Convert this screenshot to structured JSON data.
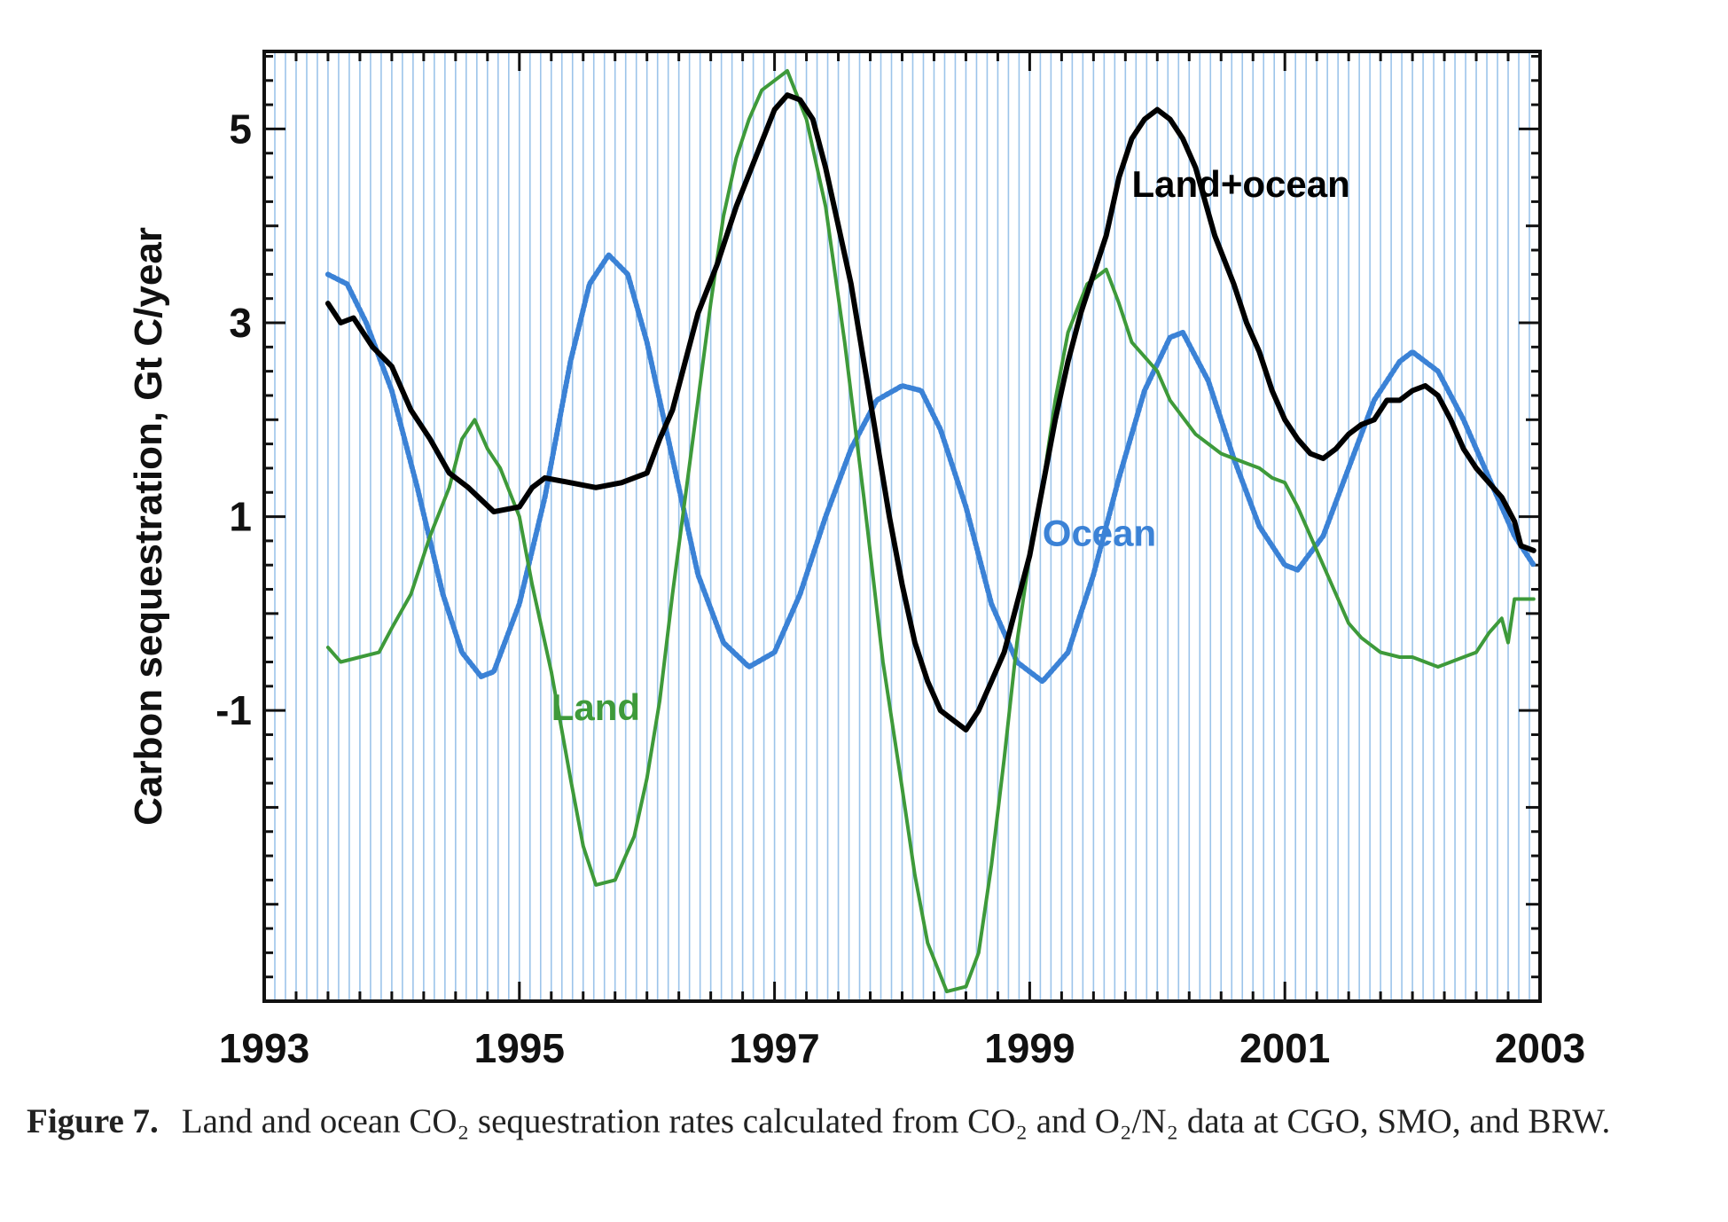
{
  "chart_data": {
    "type": "line",
    "title": "",
    "xlabel": "",
    "ylabel": "Carbon sequestration, Gt C/year",
    "xlim": [
      1993,
      2003
    ],
    "ylim": [
      -4,
      5.8
    ],
    "x_ticks": [
      "1993",
      "1995",
      "1997",
      "1999",
      "2001",
      "2003"
    ],
    "y_ticks": [
      "-1",
      "1",
      "3",
      "5"
    ],
    "grid": "vertical monthly gridlines",
    "series": [
      {
        "name": "Land+ocean",
        "color": "#000000",
        "points": [
          [
            1993.5,
            3.2
          ],
          [
            1993.6,
            3.0
          ],
          [
            1993.7,
            3.05
          ],
          [
            1993.85,
            2.75
          ],
          [
            1994.0,
            2.55
          ],
          [
            1994.15,
            2.1
          ],
          [
            1994.3,
            1.8
          ],
          [
            1994.45,
            1.45
          ],
          [
            1994.6,
            1.3
          ],
          [
            1994.8,
            1.05
          ],
          [
            1995.0,
            1.1
          ],
          [
            1995.1,
            1.3
          ],
          [
            1995.2,
            1.4
          ],
          [
            1995.4,
            1.35
          ],
          [
            1995.6,
            1.3
          ],
          [
            1995.8,
            1.35
          ],
          [
            1996.0,
            1.45
          ],
          [
            1996.1,
            1.8
          ],
          [
            1996.2,
            2.1
          ],
          [
            1996.3,
            2.6
          ],
          [
            1996.4,
            3.1
          ],
          [
            1996.55,
            3.6
          ],
          [
            1996.7,
            4.2
          ],
          [
            1996.85,
            4.7
          ],
          [
            1997.0,
            5.2
          ],
          [
            1997.1,
            5.35
          ],
          [
            1997.2,
            5.3
          ],
          [
            1997.3,
            5.1
          ],
          [
            1997.4,
            4.6
          ],
          [
            1997.5,
            4.0
          ],
          [
            1997.6,
            3.4
          ],
          [
            1997.7,
            2.6
          ],
          [
            1997.8,
            1.8
          ],
          [
            1997.9,
            1.0
          ],
          [
            1998.0,
            0.3
          ],
          [
            1998.1,
            -0.3
          ],
          [
            1998.2,
            -0.7
          ],
          [
            1998.3,
            -1.0
          ],
          [
            1998.4,
            -1.1
          ],
          [
            1998.5,
            -1.2
          ],
          [
            1998.6,
            -1.0
          ],
          [
            1998.7,
            -0.7
          ],
          [
            1998.8,
            -0.4
          ],
          [
            1998.9,
            0.1
          ],
          [
            1999.0,
            0.6
          ],
          [
            1999.1,
            1.3
          ],
          [
            1999.2,
            2.0
          ],
          [
            1999.3,
            2.6
          ],
          [
            1999.4,
            3.1
          ],
          [
            1999.5,
            3.5
          ],
          [
            1999.6,
            3.9
          ],
          [
            1999.7,
            4.5
          ],
          [
            1999.8,
            4.9
          ],
          [
            1999.9,
            5.1
          ],
          [
            2000.0,
            5.2
          ],
          [
            2000.1,
            5.1
          ],
          [
            2000.2,
            4.9
          ],
          [
            2000.3,
            4.6
          ],
          [
            2000.45,
            3.9
          ],
          [
            2000.6,
            3.4
          ],
          [
            2000.7,
            3.0
          ],
          [
            2000.8,
            2.7
          ],
          [
            2000.9,
            2.3
          ],
          [
            2001.0,
            2.0
          ],
          [
            2001.1,
            1.8
          ],
          [
            2001.2,
            1.65
          ],
          [
            2001.3,
            1.6
          ],
          [
            2001.4,
            1.7
          ],
          [
            2001.5,
            1.85
          ],
          [
            2001.6,
            1.95
          ],
          [
            2001.7,
            2.0
          ],
          [
            2001.8,
            2.2
          ],
          [
            2001.9,
            2.2
          ],
          [
            2002.0,
            2.3
          ],
          [
            2002.1,
            2.35
          ],
          [
            2002.2,
            2.25
          ],
          [
            2002.3,
            2.0
          ],
          [
            2002.4,
            1.7
          ],
          [
            2002.5,
            1.5
          ],
          [
            2002.6,
            1.35
          ],
          [
            2002.7,
            1.2
          ],
          [
            2002.8,
            0.95
          ],
          [
            2002.85,
            0.7
          ],
          [
            2002.95,
            0.65
          ]
        ]
      },
      {
        "name": "Ocean",
        "color": "#3b82d6",
        "points": [
          [
            1993.5,
            3.5
          ],
          [
            1993.65,
            3.4
          ],
          [
            1993.8,
            3.0
          ],
          [
            1994.0,
            2.3
          ],
          [
            1994.2,
            1.3
          ],
          [
            1994.4,
            0.2
          ],
          [
            1994.55,
            -0.4
          ],
          [
            1994.7,
            -0.65
          ],
          [
            1994.8,
            -0.6
          ],
          [
            1995.0,
            0.1
          ],
          [
            1995.2,
            1.2
          ],
          [
            1995.4,
            2.6
          ],
          [
            1995.55,
            3.4
          ],
          [
            1995.7,
            3.7
          ],
          [
            1995.85,
            3.5
          ],
          [
            1996.0,
            2.8
          ],
          [
            1996.2,
            1.6
          ],
          [
            1996.4,
            0.4
          ],
          [
            1996.6,
            -0.3
          ],
          [
            1996.8,
            -0.55
          ],
          [
            1997.0,
            -0.4
          ],
          [
            1997.2,
            0.2
          ],
          [
            1997.4,
            1.0
          ],
          [
            1997.6,
            1.7
          ],
          [
            1997.8,
            2.2
          ],
          [
            1998.0,
            2.35
          ],
          [
            1998.15,
            2.3
          ],
          [
            1998.3,
            1.9
          ],
          [
            1998.5,
            1.1
          ],
          [
            1998.7,
            0.1
          ],
          [
            1998.9,
            -0.5
          ],
          [
            1999.1,
            -0.7
          ],
          [
            1999.3,
            -0.4
          ],
          [
            1999.5,
            0.4
          ],
          [
            1999.7,
            1.4
          ],
          [
            1999.9,
            2.3
          ],
          [
            2000.1,
            2.85
          ],
          [
            2000.2,
            2.9
          ],
          [
            2000.4,
            2.4
          ],
          [
            2000.6,
            1.6
          ],
          [
            2000.8,
            0.9
          ],
          [
            2001.0,
            0.5
          ],
          [
            2001.1,
            0.45
          ],
          [
            2001.3,
            0.8
          ],
          [
            2001.5,
            1.5
          ],
          [
            2001.7,
            2.2
          ],
          [
            2001.9,
            2.6
          ],
          [
            2002.0,
            2.7
          ],
          [
            2002.2,
            2.5
          ],
          [
            2002.4,
            2.0
          ],
          [
            2002.6,
            1.4
          ],
          [
            2002.8,
            0.8
          ],
          [
            2002.95,
            0.5
          ]
        ]
      },
      {
        "name": "Land",
        "color": "#3e9a3a",
        "points": [
          [
            1993.5,
            -0.35
          ],
          [
            1993.6,
            -0.5
          ],
          [
            1993.75,
            -0.45
          ],
          [
            1993.9,
            -0.4
          ],
          [
            1994.0,
            -0.15
          ],
          [
            1994.15,
            0.2
          ],
          [
            1994.3,
            0.8
          ],
          [
            1994.45,
            1.3
          ],
          [
            1994.55,
            1.8
          ],
          [
            1994.65,
            2.0
          ],
          [
            1994.75,
            1.7
          ],
          [
            1994.85,
            1.5
          ],
          [
            1995.0,
            1.0
          ],
          [
            1995.1,
            0.3
          ],
          [
            1995.25,
            -0.6
          ],
          [
            1995.4,
            -1.7
          ],
          [
            1995.5,
            -2.4
          ],
          [
            1995.6,
            -2.8
          ],
          [
            1995.75,
            -2.75
          ],
          [
            1995.9,
            -2.3
          ],
          [
            1996.0,
            -1.7
          ],
          [
            1996.1,
            -0.9
          ],
          [
            1996.2,
            0.2
          ],
          [
            1996.3,
            1.2
          ],
          [
            1996.4,
            2.2
          ],
          [
            1996.5,
            3.2
          ],
          [
            1996.6,
            4.1
          ],
          [
            1996.7,
            4.7
          ],
          [
            1996.8,
            5.1
          ],
          [
            1996.9,
            5.4
          ],
          [
            1997.0,
            5.5
          ],
          [
            1997.1,
            5.6
          ],
          [
            1997.25,
            5.1
          ],
          [
            1997.4,
            4.2
          ],
          [
            1997.55,
            2.8
          ],
          [
            1997.7,
            1.2
          ],
          [
            1997.85,
            -0.5
          ],
          [
            1998.0,
            -1.8
          ],
          [
            1998.1,
            -2.7
          ],
          [
            1998.2,
            -3.4
          ],
          [
            1998.35,
            -3.9
          ],
          [
            1998.5,
            -3.85
          ],
          [
            1998.6,
            -3.5
          ],
          [
            1998.7,
            -2.6
          ],
          [
            1998.8,
            -1.5
          ],
          [
            1998.9,
            -0.3
          ],
          [
            1999.0,
            0.6
          ],
          [
            1999.1,
            1.3
          ],
          [
            1999.2,
            2.2
          ],
          [
            1999.3,
            2.9
          ],
          [
            1999.45,
            3.4
          ],
          [
            1999.6,
            3.55
          ],
          [
            1999.7,
            3.2
          ],
          [
            1999.8,
            2.8
          ],
          [
            2000.0,
            2.5
          ],
          [
            2000.1,
            2.2
          ],
          [
            2000.3,
            1.85
          ],
          [
            2000.5,
            1.65
          ],
          [
            2000.7,
            1.55
          ],
          [
            2000.8,
            1.5
          ],
          [
            2000.9,
            1.4
          ],
          [
            2001.0,
            1.35
          ],
          [
            2001.1,
            1.1
          ],
          [
            2001.2,
            0.8
          ],
          [
            2001.3,
            0.5
          ],
          [
            2001.4,
            0.2
          ],
          [
            2001.5,
            -0.1
          ],
          [
            2001.6,
            -0.25
          ],
          [
            2001.75,
            -0.4
          ],
          [
            2001.9,
            -0.45
          ],
          [
            2002.0,
            -0.45
          ],
          [
            2002.1,
            -0.5
          ],
          [
            2002.2,
            -0.55
          ],
          [
            2002.3,
            -0.5
          ],
          [
            2002.5,
            -0.4
          ],
          [
            2002.6,
            -0.2
          ],
          [
            2002.7,
            -0.05
          ],
          [
            2002.75,
            -0.3
          ],
          [
            2002.8,
            0.15
          ],
          [
            2002.95,
            0.15
          ]
        ]
      }
    ],
    "annotations": [
      {
        "text": "Land+ocean",
        "x": 1999.8,
        "y": 4.3,
        "series": "Land+ocean"
      },
      {
        "text": "Ocean",
        "x": 1999.1,
        "y": 0.7,
        "series": "Ocean"
      },
      {
        "text": "Land",
        "x": 1995.25,
        "y": -1.1,
        "series": "Land"
      }
    ]
  },
  "caption": {
    "label": "Figure 7.",
    "text": "Land and ocean CO₂ sequestration rates calculated from CO₂ and O₂/N₂ data at CGO, SMO, and BRW."
  }
}
